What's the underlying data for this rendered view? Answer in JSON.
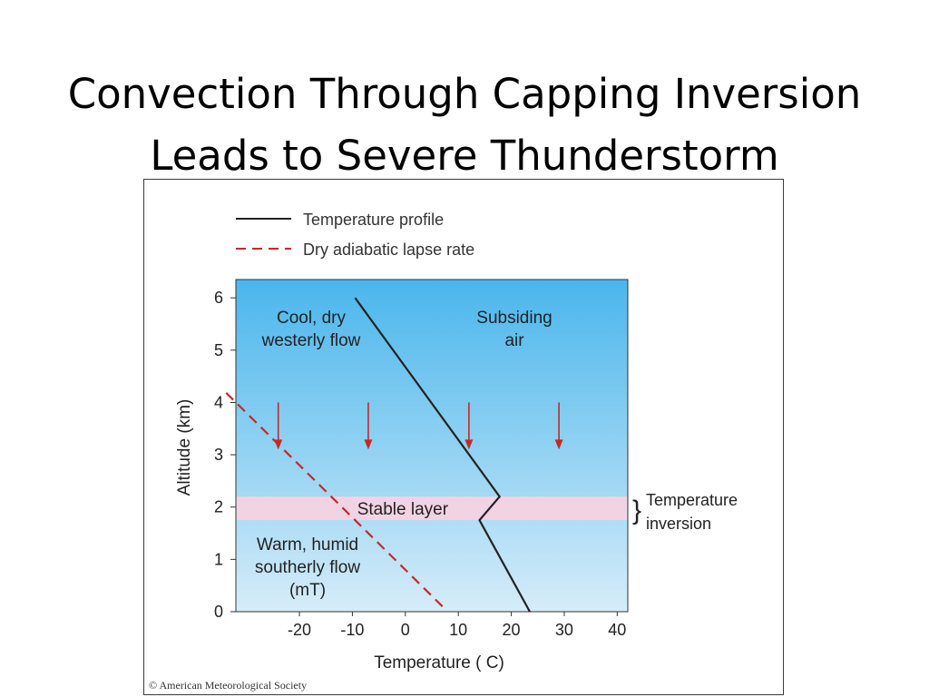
{
  "slide": {
    "title_line1": "Convection Through Capping Inversion",
    "title_line2": "Leads to Severe Thunderstorm"
  },
  "chart_data": {
    "type": "line",
    "xlabel": "Temperature ( C)",
    "ylabel": "Altitude (km)",
    "xlim": [
      -32,
      42
    ],
    "ylim": [
      0,
      6.35
    ],
    "xticks": [
      -20,
      -10,
      0,
      10,
      20,
      30,
      40
    ],
    "yticks": [
      0,
      1,
      2,
      3,
      4,
      5,
      6
    ],
    "legend_position": "top-left",
    "series": [
      {
        "name": "Temperature profile",
        "color": "#222222",
        "style": "solid",
        "points": [
          [
            23.5,
            0
          ],
          [
            14,
            1.75
          ],
          [
            17.8,
            2.2
          ],
          [
            -9.5,
            6.0
          ]
        ]
      },
      {
        "name": "Dry adiabatic lapse rate",
        "color": "#c62828",
        "style": "dashed",
        "points": [
          [
            7,
            0.1
          ],
          [
            -34,
            4.2
          ]
        ]
      }
    ],
    "bands": [
      {
        "label": "Stable layer",
        "ymin": 1.75,
        "ymax": 2.2,
        "color": "#f2d3e3"
      }
    ],
    "arrows": [
      {
        "x": -24,
        "y_from": 4.0,
        "y_to": 3.1
      },
      {
        "x": -7,
        "y_from": 4.0,
        "y_to": 3.1
      },
      {
        "x": 12,
        "y_from": 4.0,
        "y_to": 3.1
      },
      {
        "x": 29,
        "y_from": 4.0,
        "y_to": 3.1
      }
    ],
    "arrow_color": "#c62828",
    "annotations": {
      "cool_line1": "Cool, dry",
      "cool_line2": "westerly flow",
      "subsiding_line1": "Subsiding",
      "subsiding_line2": "air",
      "warm_line1": "Warm, humid",
      "warm_line2": "southerly flow",
      "warm_line3": "(mT)",
      "inversion_line1": "Temperature",
      "inversion_line2": "inversion"
    },
    "gradient": {
      "top": "#4ab6ec",
      "bottom": "#d6ecf9"
    },
    "copyright": "© American Meteorological Society"
  }
}
